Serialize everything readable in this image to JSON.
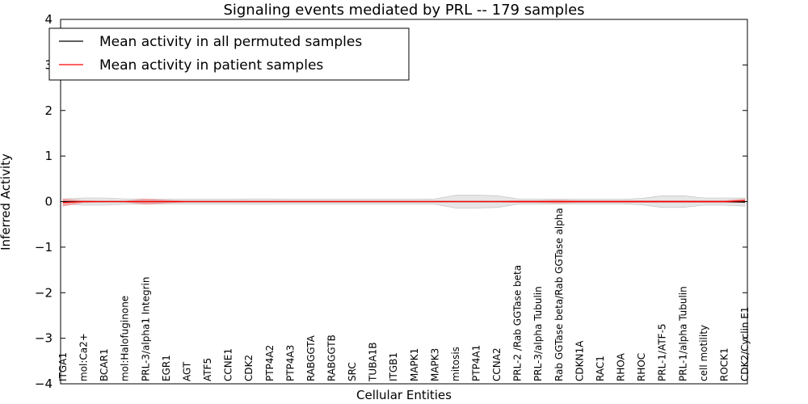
{
  "chart_data": {
    "type": "line",
    "title": "Signaling events mediated by PRL -- 179 samples",
    "xlabel": "Cellular Entities",
    "ylabel": "Inferred Activity",
    "ylim": [
      -4,
      4
    ],
    "yticks": [
      -4,
      -3,
      -2,
      -1,
      0,
      1,
      2,
      3,
      4
    ],
    "ytick_labels": [
      "−4",
      "−3",
      "−2",
      "−1",
      "0",
      "1",
      "2",
      "3",
      "4"
    ],
    "legend_position": "top-left",
    "categories": [
      "ITGA1",
      "mol:Ca2+",
      "BCAR1",
      "mol:Halofuginone",
      "PRL-3/alpha1 Integrin",
      "EGR1",
      "AGT",
      "ATF5",
      "CCNE1",
      "CDK2",
      "PTP4A2",
      "PTP4A3",
      "RABGGTA",
      "RABGGTB",
      "SRC",
      "TUBA1B",
      "ITGB1",
      "MAPK1",
      "MAPK3",
      "mitosis",
      "PTP4A1",
      "CCNA2",
      "PRL-2 /Rab GGTase beta",
      "PRL-3/alpha Tubulin",
      "Rab GGTase beta/Rab GGTase alpha",
      "CDKN1A",
      "RAC1",
      "RHOA",
      "RHOC",
      "PRL-1/ATF-5",
      "PRL-1/alpha Tubulin",
      "cell motility",
      "ROCK1",
      "CDK2/Cyclin E1"
    ],
    "series": [
      {
        "name": "Mean activity in all permuted samples",
        "color": "#000000",
        "band_color": "#d9d9d9",
        "values": [
          0.0,
          0.0,
          0.0,
          0.0,
          0.0,
          0.0,
          0.0,
          0.0,
          0.0,
          0.0,
          0.0,
          0.0,
          0.0,
          0.0,
          0.0,
          0.0,
          0.0,
          0.0,
          0.0,
          0.0,
          0.0,
          0.0,
          0.0,
          0.0,
          0.0,
          0.0,
          0.0,
          0.0,
          0.0,
          0.0,
          0.0,
          0.0,
          0.0,
          -0.01
        ],
        "spread": [
          0.06,
          0.08,
          0.08,
          0.06,
          0.06,
          0.05,
          0.05,
          0.05,
          0.05,
          0.06,
          0.06,
          0.05,
          0.05,
          0.05,
          0.05,
          0.05,
          0.05,
          0.05,
          0.06,
          0.14,
          0.14,
          0.13,
          0.06,
          0.06,
          0.05,
          0.05,
          0.05,
          0.05,
          0.07,
          0.13,
          0.13,
          0.08,
          0.08,
          0.09
        ]
      },
      {
        "name": "Mean activity in patient samples",
        "color": "#ff0000",
        "band_color": "#f08080",
        "values": [
          -0.02,
          0.0,
          0.0,
          0.0,
          0.0,
          0.0,
          0.0,
          0.0,
          0.0,
          0.0,
          0.0,
          0.0,
          0.0,
          0.0,
          0.0,
          0.0,
          0.0,
          0.0,
          0.0,
          0.0,
          0.0,
          0.0,
          0.0,
          0.0,
          0.0,
          0.0,
          0.0,
          0.0,
          0.0,
          0.0,
          0.0,
          0.0,
          0.0,
          0.02
        ],
        "spread": [
          0.08,
          0.02,
          0.01,
          0.01,
          0.06,
          0.03,
          0.01,
          0.01,
          0.01,
          0.01,
          0.01,
          0.01,
          0.01,
          0.01,
          0.01,
          0.01,
          0.01,
          0.01,
          0.01,
          0.01,
          0.01,
          0.01,
          0.02,
          0.02,
          0.03,
          0.02,
          0.02,
          0.02,
          0.02,
          0.02,
          0.02,
          0.02,
          0.02,
          0.04
        ]
      }
    ]
  }
}
